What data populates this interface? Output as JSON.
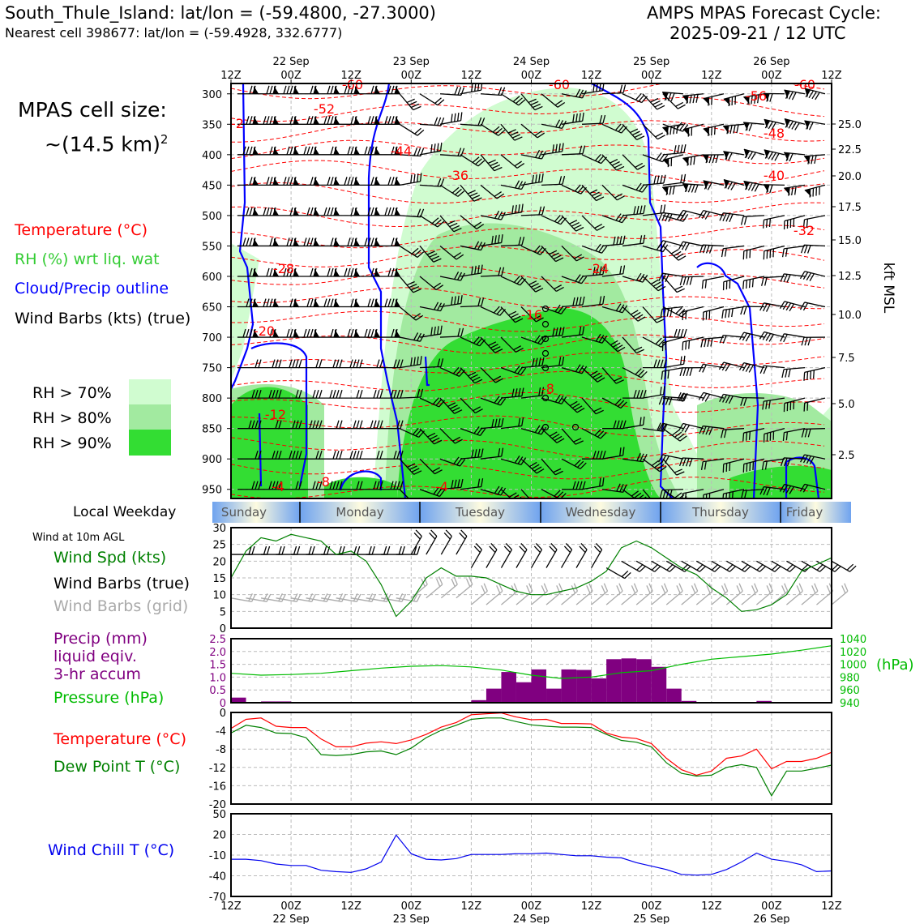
{
  "header": {
    "station": "South_Thule_Island: lat/lon = (-59.4800, -27.3000)",
    "nearest_cell": "Nearest cell 398677: lat/lon = (-59.4928, 332.6777)",
    "product": "AMPS MPAS Forecast Cycle:",
    "cycle": "2025-09-21 / 12 UTC"
  },
  "cell_size": {
    "line1": "MPAS cell size:",
    "line2_base": "~(14.5 km)",
    "line2_sup": "2"
  },
  "legend_upper": {
    "temp": "Temperature (°C)",
    "rh": "RH (%) wrt liq. wat",
    "cloud": "Cloud/Precip outline",
    "wind": "Wind Barbs (kts) (true)",
    "rh70": "RH > 70%",
    "rh80": "RH > 80%",
    "rh90": "RH > 90%"
  },
  "colors": {
    "temp": "#ff0000",
    "rh_label": "#33cc33",
    "cloud": "#0000ff",
    "rh70": "#d0fcd0",
    "rh80": "#a2eaa0",
    "rh90": "#33dd33",
    "precip": "#800080",
    "pressure": "#00bb00",
    "dewpoint": "#008000",
    "windchill": "#0000ee",
    "grid_barb": "#aaaaaa"
  },
  "time_axis": {
    "ticks": [
      "12Z",
      "00Z",
      "12Z",
      "00Z",
      "12Z",
      "00Z",
      "12Z",
      "00Z",
      "12Z",
      "00Z",
      "12Z"
    ],
    "dates": [
      "22 Sep",
      "23 Sep",
      "24 Sep",
      "25 Sep",
      "26 Sep"
    ]
  },
  "weekday": {
    "label": "Local Weekday",
    "days": [
      "Sunday",
      "Monday",
      "Tuesday",
      "Wednesday",
      "Thursday",
      "Friday"
    ]
  },
  "kft_axis": {
    "title": "kft MSL",
    "ticks": [
      "25.0",
      "22.5",
      "20.0",
      "17.5",
      "15.0",
      "12.5",
      "10.0",
      "7.5",
      "5.0",
      "2.5"
    ]
  },
  "pressure_levels": [
    "300",
    "350",
    "400",
    "450",
    "500",
    "550",
    "600",
    "650",
    "700",
    "750",
    "800",
    "850",
    "900",
    "950"
  ],
  "contour_labels": [
    "-60",
    "-60",
    "-60",
    "-56",
    "-52",
    "-48",
    "-44",
    "-40",
    "-36",
    "-32",
    "-28",
    "-24",
    "-20",
    "-16",
    "-12",
    "-8",
    "-8",
    "-4",
    "-4",
    "-2"
  ],
  "wind10m": {
    "title": "Wind at 10m AGL",
    "spd_label": "Wind Spd (kts)",
    "true_label": "Wind Barbs (true)",
    "grid_label": "Wind Barbs (grid)",
    "yticks": [
      "30",
      "25",
      "20",
      "15",
      "10",
      "5",
      "0"
    ]
  },
  "precip_panel": {
    "label1": "Precip (mm)",
    "label2": "liquid eqiv.",
    "label3": "3-hr accum",
    "pressure_label": "Pressure (hPa)",
    "yticks_left": [
      "2.5",
      "2.0",
      "1.5",
      "1.0",
      "0.5",
      "0"
    ],
    "yticks_right": [
      "1040",
      "1020",
      "1000",
      "980",
      "960",
      "940"
    ],
    "right_unit": "(hPa)"
  },
  "temp_panel": {
    "temp_label": "Temperature (°C)",
    "dew_label": "Dew Point T (°C)",
    "yticks": [
      "0",
      "-4",
      "-8",
      "-12",
      "-16",
      "-20"
    ]
  },
  "windchill_panel": {
    "label": "Wind Chill T (°C)",
    "yticks": [
      "50",
      "20",
      "-10",
      "-40",
      "-70"
    ]
  },
  "chart_data": [
    {
      "type": "line",
      "title": "Wind at 10m AGL",
      "x_hours": [
        0,
        3,
        6,
        9,
        12,
        15,
        18,
        21,
        24,
        27,
        30,
        33,
        36,
        39,
        42,
        45,
        48,
        51,
        54,
        57,
        60,
        63,
        66,
        69,
        72,
        75,
        78,
        81,
        84,
        87,
        90,
        93,
        96,
        99,
        102,
        105,
        108,
        111,
        114,
        117,
        120
      ],
      "series": [
        {
          "name": "Wind Spd (kts)",
          "values": [
            15,
            23,
            27,
            26,
            28,
            27,
            26,
            22,
            23,
            20,
            13,
            3.5,
            8,
            15,
            18,
            15.5,
            15.5,
            15,
            13,
            11,
            10,
            10,
            11,
            12,
            14,
            17,
            24,
            26,
            24,
            21,
            18,
            16,
            12,
            9,
            5,
            5.5,
            7,
            10,
            17,
            19,
            21
          ]
        }
      ],
      "ylim": [
        0,
        30
      ]
    },
    {
      "type": "bar",
      "title": "Precip (mm) 3-hr accum",
      "x_hours": [
        0,
        3,
        6,
        9,
        12,
        15,
        18,
        21,
        24,
        27,
        30,
        33,
        36,
        39,
        42,
        45,
        48,
        51,
        54,
        57,
        60,
        63,
        66,
        69,
        72,
        75,
        78,
        81,
        84,
        87,
        90,
        93,
        96,
        99,
        102,
        105,
        108,
        111,
        114,
        117
      ],
      "values": [
        0.2,
        0,
        0.05,
        0.05,
        0,
        0,
        0,
        0,
        0,
        0,
        0,
        0,
        0,
        0,
        0,
        0,
        0.1,
        0.55,
        1.2,
        0.8,
        1.3,
        0.55,
        1.3,
        1.28,
        0.95,
        1.7,
        1.73,
        1.7,
        1.4,
        0.55,
        0.07,
        0,
        0,
        0,
        0,
        0.07,
        0,
        0,
        0,
        0
      ],
      "ylim": [
        0,
        2.5
      ]
    },
    {
      "type": "line",
      "title": "Pressure (hPa)",
      "x_hours": [
        0,
        6,
        12,
        18,
        24,
        30,
        36,
        42,
        48,
        54,
        60,
        66,
        72,
        78,
        84,
        90,
        96,
        102,
        108,
        114,
        120
      ],
      "series": [
        {
          "name": "Pressure (hPa)",
          "values": [
            986,
            983,
            984,
            986,
            990,
            994,
            997,
            998,
            996,
            991,
            983,
            978,
            980,
            987,
            990,
            1000,
            1008,
            1012,
            1016,
            1022,
            1029
          ]
        }
      ],
      "ylim": [
        940,
        1040
      ]
    },
    {
      "type": "line",
      "title": "Temperature / Dew Point",
      "x_hours": [
        0,
        3,
        6,
        9,
        12,
        15,
        18,
        21,
        24,
        27,
        30,
        33,
        36,
        39,
        42,
        45,
        48,
        51,
        54,
        57,
        60,
        63,
        66,
        69,
        72,
        75,
        78,
        81,
        84,
        87,
        90,
        93,
        96,
        99,
        102,
        105,
        108,
        111,
        114,
        117,
        120
      ],
      "series": [
        {
          "name": "Temperature (°C)",
          "values": [
            -3.5,
            -1.5,
            -1.2,
            -3,
            -3.3,
            -3.3,
            -5.8,
            -7.5,
            -7.5,
            -6.7,
            -6.4,
            -6.8,
            -6,
            -4.8,
            -3.2,
            -2.2,
            -0.5,
            -0.3,
            -0.1,
            -1,
            -1.6,
            -1.5,
            -2.4,
            -2.4,
            -2.5,
            -4.5,
            -5.4,
            -5.7,
            -6.8,
            -10,
            -12.5,
            -13.7,
            -12.8,
            -10,
            -9.5,
            -8,
            -12.3,
            -10.7,
            -10.7,
            -10,
            -8.7
          ],
          "color": "#ff0000"
        },
        {
          "name": "Dew Point T (°C)",
          "values": [
            -4.5,
            -2.8,
            -3.3,
            -4.5,
            -4.6,
            -5.5,
            -9.2,
            -9.4,
            -9.2,
            -8.6,
            -8.4,
            -9.2,
            -7.8,
            -5.5,
            -3.9,
            -2.8,
            -1.5,
            -1.2,
            -1.2,
            -2,
            -2.7,
            -3,
            -3.2,
            -3.2,
            -3.3,
            -4.8,
            -6.1,
            -6.5,
            -7.5,
            -11,
            -13.3,
            -13.9,
            -13.7,
            -12,
            -11.4,
            -12,
            -18.2,
            -12.8,
            -12.8,
            -12.2,
            -11.5
          ],
          "color": "#008000"
        }
      ],
      "ylim": [
        -20,
        0
      ]
    },
    {
      "type": "line",
      "title": "Wind Chill T (°C)",
      "x_hours": [
        0,
        3,
        6,
        9,
        12,
        15,
        18,
        21,
        24,
        27,
        30,
        33,
        36,
        39,
        42,
        45,
        48,
        51,
        54,
        57,
        60,
        63,
        66,
        69,
        72,
        75,
        78,
        81,
        84,
        87,
        90,
        93,
        96,
        99,
        102,
        105,
        108,
        111,
        114,
        117,
        120
      ],
      "series": [
        {
          "name": "Wind Chill T (°C)",
          "values": [
            -16,
            -16,
            -18,
            -23,
            -25,
            -25,
            -32,
            -34,
            -35,
            -30,
            -20,
            19,
            -8,
            -16,
            -17,
            -15,
            -9,
            -9,
            -9,
            -8,
            -8,
            -7,
            -9,
            -11,
            -11,
            -13,
            -14,
            -21,
            -26,
            -31,
            -38,
            -39,
            -38,
            -31,
            -20,
            -7,
            -16,
            -19,
            -24,
            -34,
            -33
          ],
          "color": "#0000ee"
        }
      ],
      "ylim": [
        -70,
        50
      ]
    }
  ]
}
